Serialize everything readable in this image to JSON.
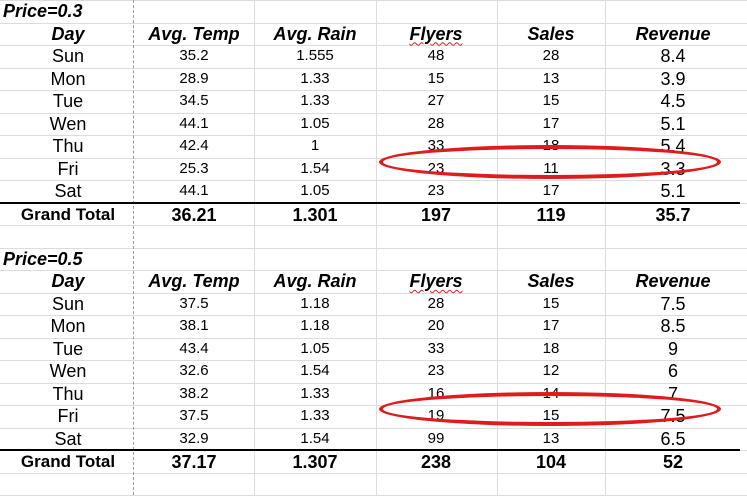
{
  "sections": [
    {
      "title": "Price=0.3",
      "headers": [
        "Day",
        "Avg. Temp",
        "Avg. Rain",
        "Flyers",
        "Sales",
        "Revenue"
      ],
      "rows": [
        [
          "Sun",
          "35.2",
          "1.555",
          "48",
          "28",
          "8.4"
        ],
        [
          "Mon",
          "28.9",
          "1.33",
          "15",
          "13",
          "3.9"
        ],
        [
          "Tue",
          "34.5",
          "1.33",
          "27",
          "15",
          "4.5"
        ],
        [
          "Wen",
          "44.1",
          "1.05",
          "28",
          "17",
          "5.1"
        ],
        [
          "Thu",
          "42.4",
          "1",
          "33",
          "18",
          "5.4"
        ],
        [
          "Fri",
          "25.3",
          "1.54",
          "23",
          "11",
          "3.3"
        ],
        [
          "Sat",
          "44.1",
          "1.05",
          "23",
          "17",
          "5.1"
        ]
      ],
      "total": [
        "Grand Total",
        "36.21",
        "1.301",
        "197",
        "119",
        "35.7"
      ]
    },
    {
      "title": "Price=0.5",
      "headers": [
        "Day",
        "Avg. Temp",
        "Avg. Rain",
        "Flyers",
        "Sales",
        "Revenue"
      ],
      "rows": [
        [
          "Sun",
          "37.5",
          "1.18",
          "28",
          "15",
          "7.5"
        ],
        [
          "Mon",
          "38.1",
          "1.18",
          "20",
          "17",
          "8.5"
        ],
        [
          "Tue",
          "43.4",
          "1.05",
          "33",
          "18",
          "9"
        ],
        [
          "Wen",
          "32.6",
          "1.54",
          "23",
          "12",
          "6"
        ],
        [
          "Thu",
          "38.2",
          "1.33",
          "16",
          "14",
          "7"
        ],
        [
          "Fri",
          "37.5",
          "1.33",
          "19",
          "15",
          "7.5"
        ],
        [
          "Sat",
          "32.9",
          "1.54",
          "99",
          "13",
          "6.5"
        ]
      ],
      "total": [
        "Grand Total",
        "37.17",
        "1.307",
        "238",
        "104",
        "52"
      ]
    }
  ],
  "highlights": [
    {
      "section": 0,
      "row": 5,
      "color": "#e01b1b"
    },
    {
      "section": 1,
      "row": 5,
      "color": "#e01b1b"
    }
  ]
}
